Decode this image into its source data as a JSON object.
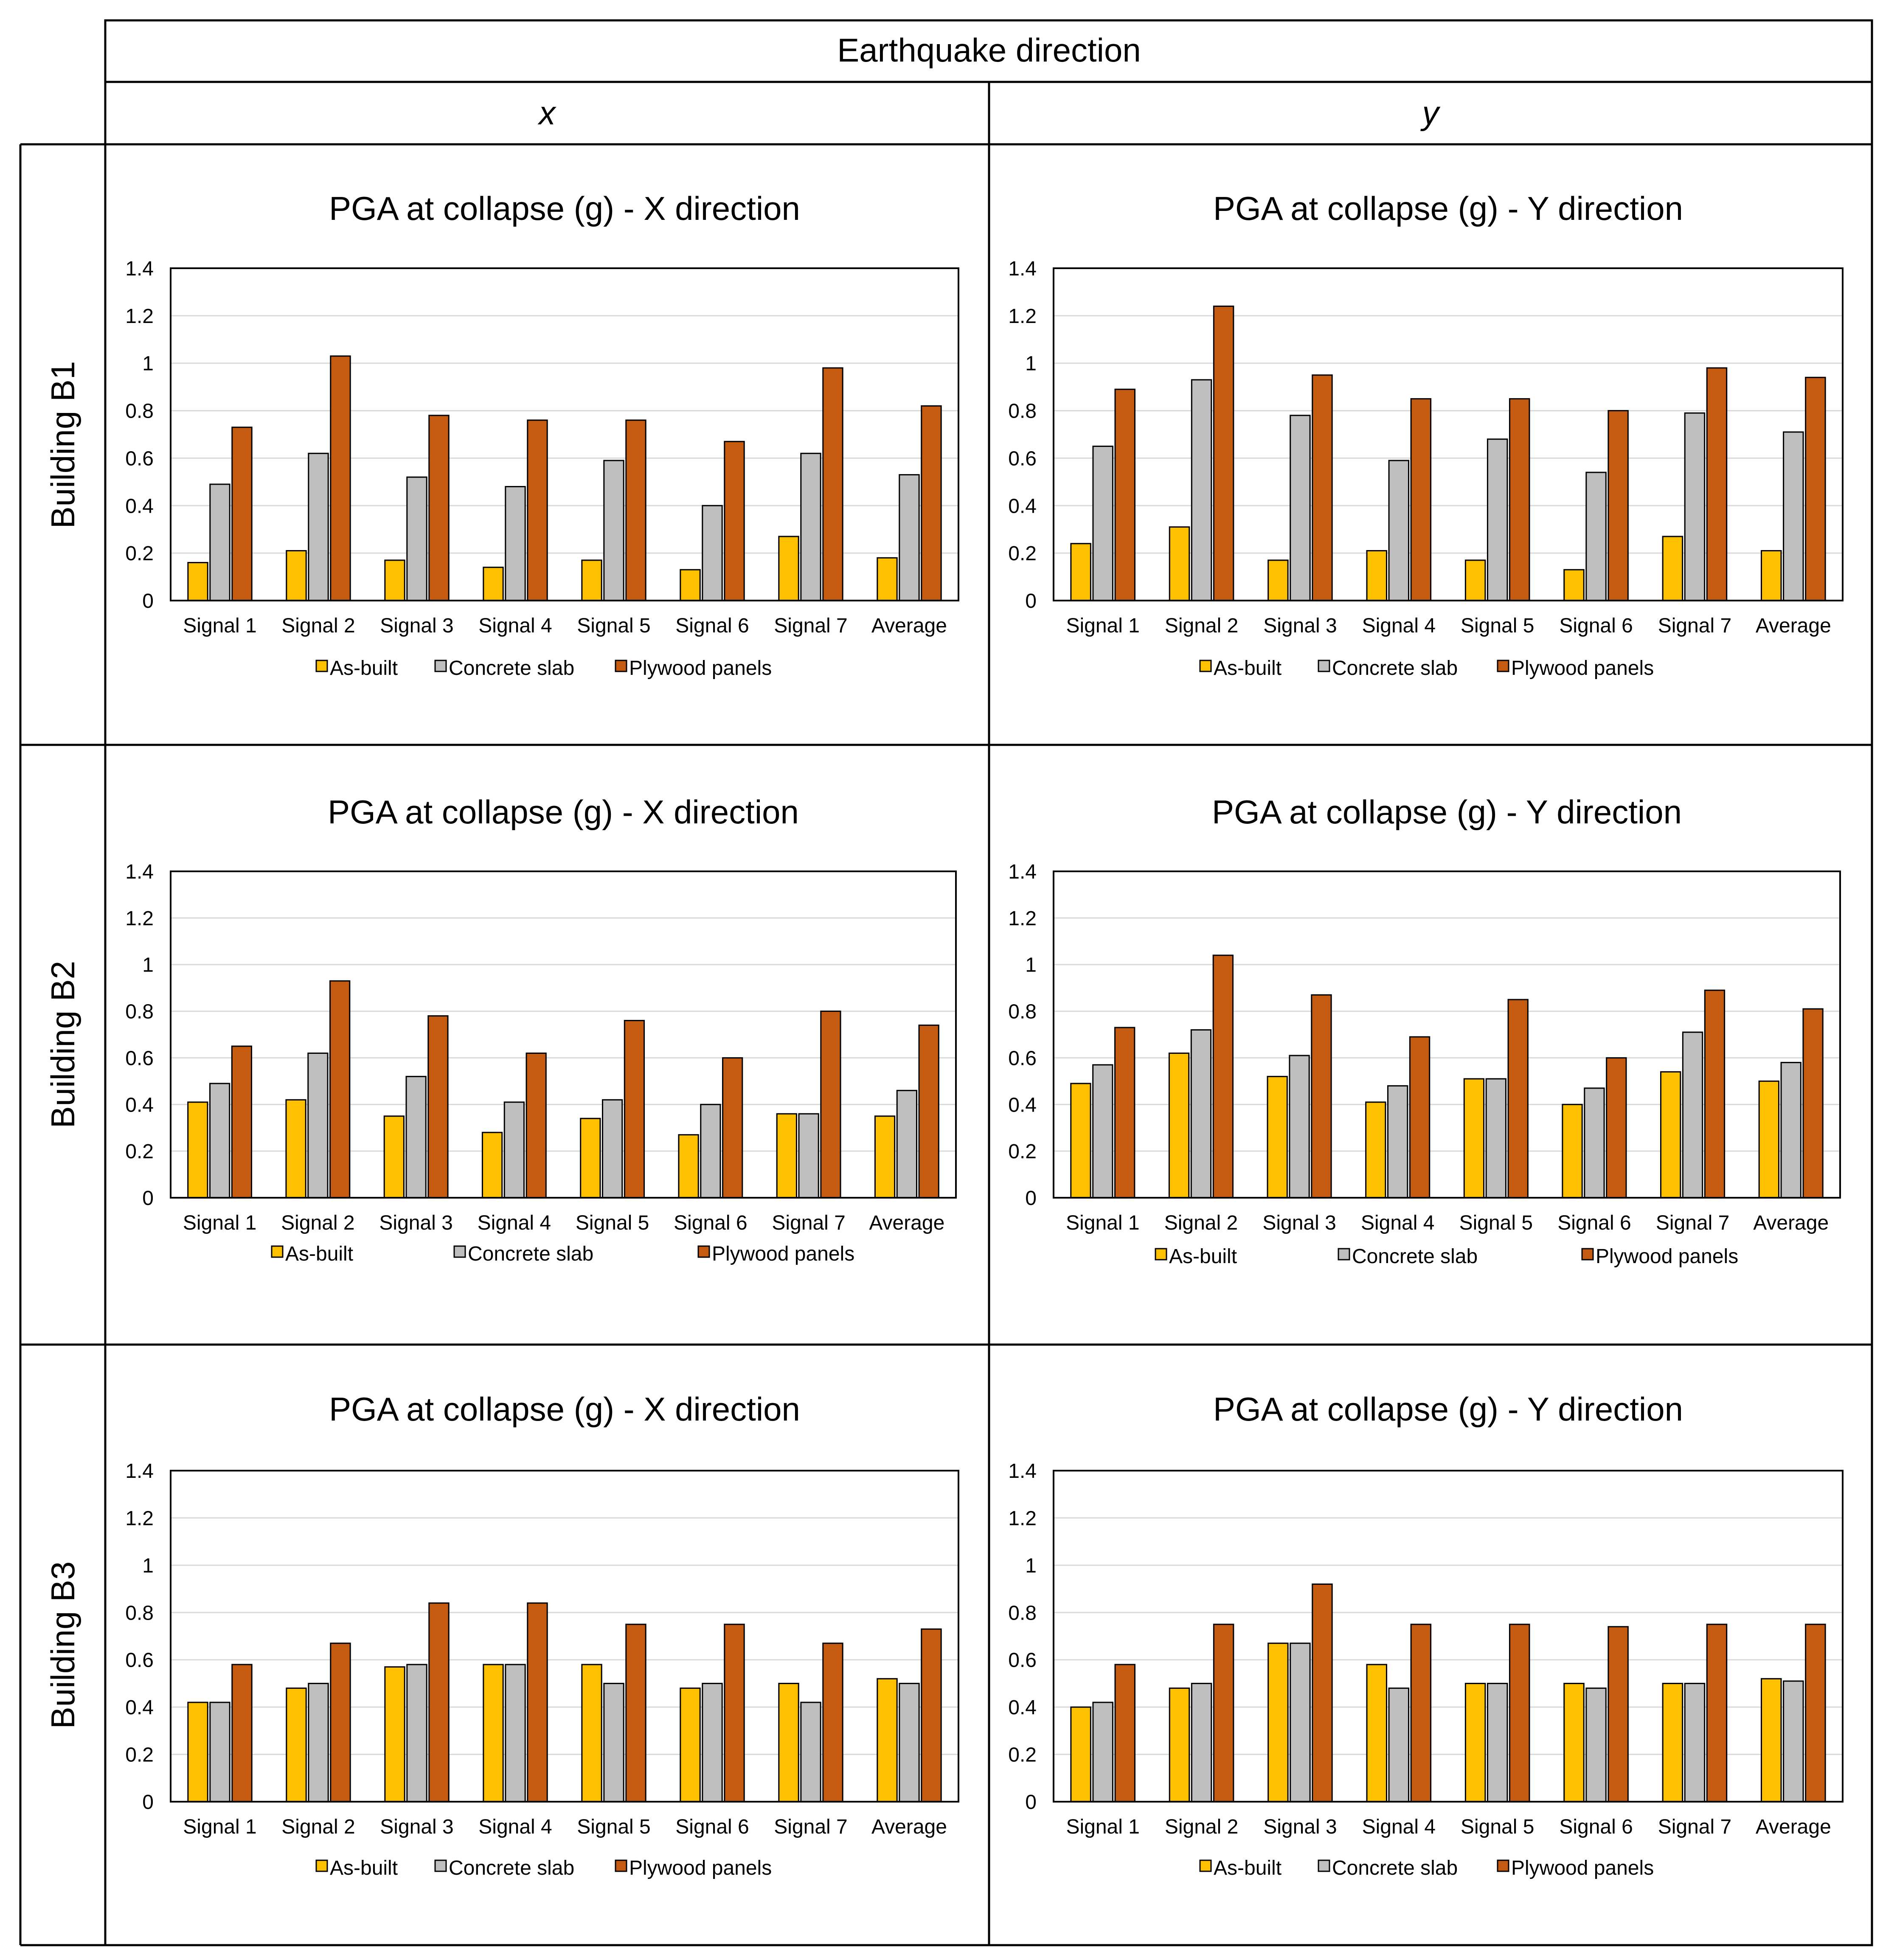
{
  "header": {
    "title": "Earthquake direction",
    "col_x": "x",
    "col_y": "y"
  },
  "rows": [
    "Building B1",
    "Building B2",
    "Building B3"
  ],
  "colors": {
    "as_built": "#FFC000",
    "concrete_slab": "#BFBFBF",
    "plywood_panels": "#C55A11",
    "gridline": "#D9D9D9"
  },
  "chart_data": [
    {
      "type": "bar",
      "title": "PGA at collapse (g) - X direction",
      "building": "Building B1",
      "categories": [
        "Signal 1",
        "Signal 2",
        "Signal 3",
        "Signal 4",
        "Signal 5",
        "Signal 6",
        "Signal 7",
        "Average"
      ],
      "yticks": [
        "0",
        "0.2",
        "0.4",
        "0.6",
        "0.8",
        "1",
        "1.2",
        "1.4"
      ],
      "ylim": [
        0,
        1.4
      ],
      "series": [
        {
          "name": "As-built",
          "values": [
            0.16,
            0.21,
            0.17,
            0.14,
            0.17,
            0.13,
            0.27,
            0.18
          ]
        },
        {
          "name": "Concrete slab",
          "values": [
            0.49,
            0.62,
            0.52,
            0.48,
            0.59,
            0.4,
            0.62,
            0.53
          ]
        },
        {
          "name": "Plywood panels",
          "values": [
            0.73,
            1.03,
            0.78,
            0.76,
            0.76,
            0.67,
            0.98,
            0.82
          ]
        }
      ]
    },
    {
      "type": "bar",
      "title": "PGA at collapse (g) - Y direction",
      "building": "Building B1",
      "categories": [
        "Signal 1",
        "Signal 2",
        "Signal 3",
        "Signal 4",
        "Signal 5",
        "Signal 6",
        "Signal 7",
        "Average"
      ],
      "yticks": [
        "0",
        "0.2",
        "0.4",
        "0.6",
        "0.8",
        "1",
        "1.2",
        "1.4"
      ],
      "ylim": [
        0,
        1.4
      ],
      "series": [
        {
          "name": "As-built",
          "values": [
            0.24,
            0.31,
            0.17,
            0.21,
            0.17,
            0.13,
            0.27,
            0.21
          ]
        },
        {
          "name": "Concrete slab",
          "values": [
            0.65,
            0.93,
            0.78,
            0.59,
            0.68,
            0.54,
            0.79,
            0.71
          ]
        },
        {
          "name": "Plywood panels",
          "values": [
            0.89,
            1.24,
            0.95,
            0.85,
            0.85,
            0.8,
            0.98,
            0.94
          ]
        }
      ]
    },
    {
      "type": "bar",
      "title": "PGA at collapse (g) - X direction",
      "building": "Building B2",
      "categories": [
        "Signal 1",
        "Signal 2",
        "Signal 3",
        "Signal 4",
        "Signal 5",
        "Signal 6",
        "Signal 7",
        "Average"
      ],
      "yticks": [
        "0",
        "0.2",
        "0.4",
        "0.6",
        "0.8",
        "1",
        "1.2",
        "1.4"
      ],
      "ylim": [
        0,
        1.4
      ],
      "series": [
        {
          "name": "As-built",
          "values": [
            0.41,
            0.42,
            0.35,
            0.28,
            0.34,
            0.27,
            0.36,
            0.35
          ]
        },
        {
          "name": "Concrete slab",
          "values": [
            0.49,
            0.62,
            0.52,
            0.41,
            0.42,
            0.4,
            0.36,
            0.46
          ]
        },
        {
          "name": "Plywood panels",
          "values": [
            0.65,
            0.93,
            0.78,
            0.62,
            0.76,
            0.6,
            0.8,
            0.74
          ]
        }
      ]
    },
    {
      "type": "bar",
      "title": "PGA at collapse (g) - Y direction",
      "building": "Building B2",
      "categories": [
        "Signal 1",
        "Signal 2",
        "Signal 3",
        "Signal 4",
        "Signal 5",
        "Signal 6",
        "Signal 7",
        "Average"
      ],
      "yticks": [
        "0",
        "0.2",
        "0.4",
        "0.6",
        "0.8",
        "1",
        "1.2",
        "1.4"
      ],
      "ylim": [
        0,
        1.4
      ],
      "series": [
        {
          "name": "As-built",
          "values": [
            0.49,
            0.62,
            0.52,
            0.41,
            0.51,
            0.4,
            0.54,
            0.5
          ]
        },
        {
          "name": "Concrete slab",
          "values": [
            0.57,
            0.72,
            0.61,
            0.48,
            0.51,
            0.47,
            0.71,
            0.58
          ]
        },
        {
          "name": "Plywood panels",
          "values": [
            0.73,
            1.04,
            0.87,
            0.69,
            0.85,
            0.6,
            0.89,
            0.81
          ]
        }
      ]
    },
    {
      "type": "bar",
      "title": "PGA at collapse (g) - X direction",
      "building": "Building B3",
      "categories": [
        "Signal 1",
        "Signal 2",
        "Signal 3",
        "Signal 4",
        "Signal 5",
        "Signal 6",
        "Signal 7",
        "Average"
      ],
      "yticks": [
        "0",
        "0.2",
        "0.4",
        "0.6",
        "0.8",
        "1",
        "1.2",
        "1.4"
      ],
      "ylim": [
        0,
        1.4
      ],
      "series": [
        {
          "name": "As-built",
          "values": [
            0.42,
            0.48,
            0.57,
            0.58,
            0.58,
            0.48,
            0.5,
            0.52
          ]
        },
        {
          "name": "Concrete slab",
          "values": [
            0.42,
            0.5,
            0.58,
            0.58,
            0.5,
            0.5,
            0.42,
            0.5
          ]
        },
        {
          "name": "Plywood panels",
          "values": [
            0.58,
            0.67,
            0.84,
            0.84,
            0.75,
            0.75,
            0.67,
            0.73
          ]
        }
      ]
    },
    {
      "type": "bar",
      "title": "PGA at collapse (g) - Y direction",
      "building": "Building B3",
      "categories": [
        "Signal 1",
        "Signal 2",
        "Signal 3",
        "Signal 4",
        "Signal 5",
        "Signal 6",
        "Signal 7",
        "Average"
      ],
      "yticks": [
        "0",
        "0.2",
        "0.4",
        "0.6",
        "0.8",
        "1",
        "1.2",
        "1.4"
      ],
      "ylim": [
        0,
        1.4
      ],
      "series": [
        {
          "name": "As-built",
          "values": [
            0.4,
            0.48,
            0.67,
            0.58,
            0.5,
            0.5,
            0.5,
            0.52
          ]
        },
        {
          "name": "Concrete slab",
          "values": [
            0.42,
            0.5,
            0.67,
            0.48,
            0.5,
            0.48,
            0.5,
            0.51
          ]
        },
        {
          "name": "Plywood panels",
          "values": [
            0.58,
            0.75,
            0.92,
            0.75,
            0.75,
            0.74,
            0.75,
            0.75
          ]
        }
      ]
    }
  ]
}
